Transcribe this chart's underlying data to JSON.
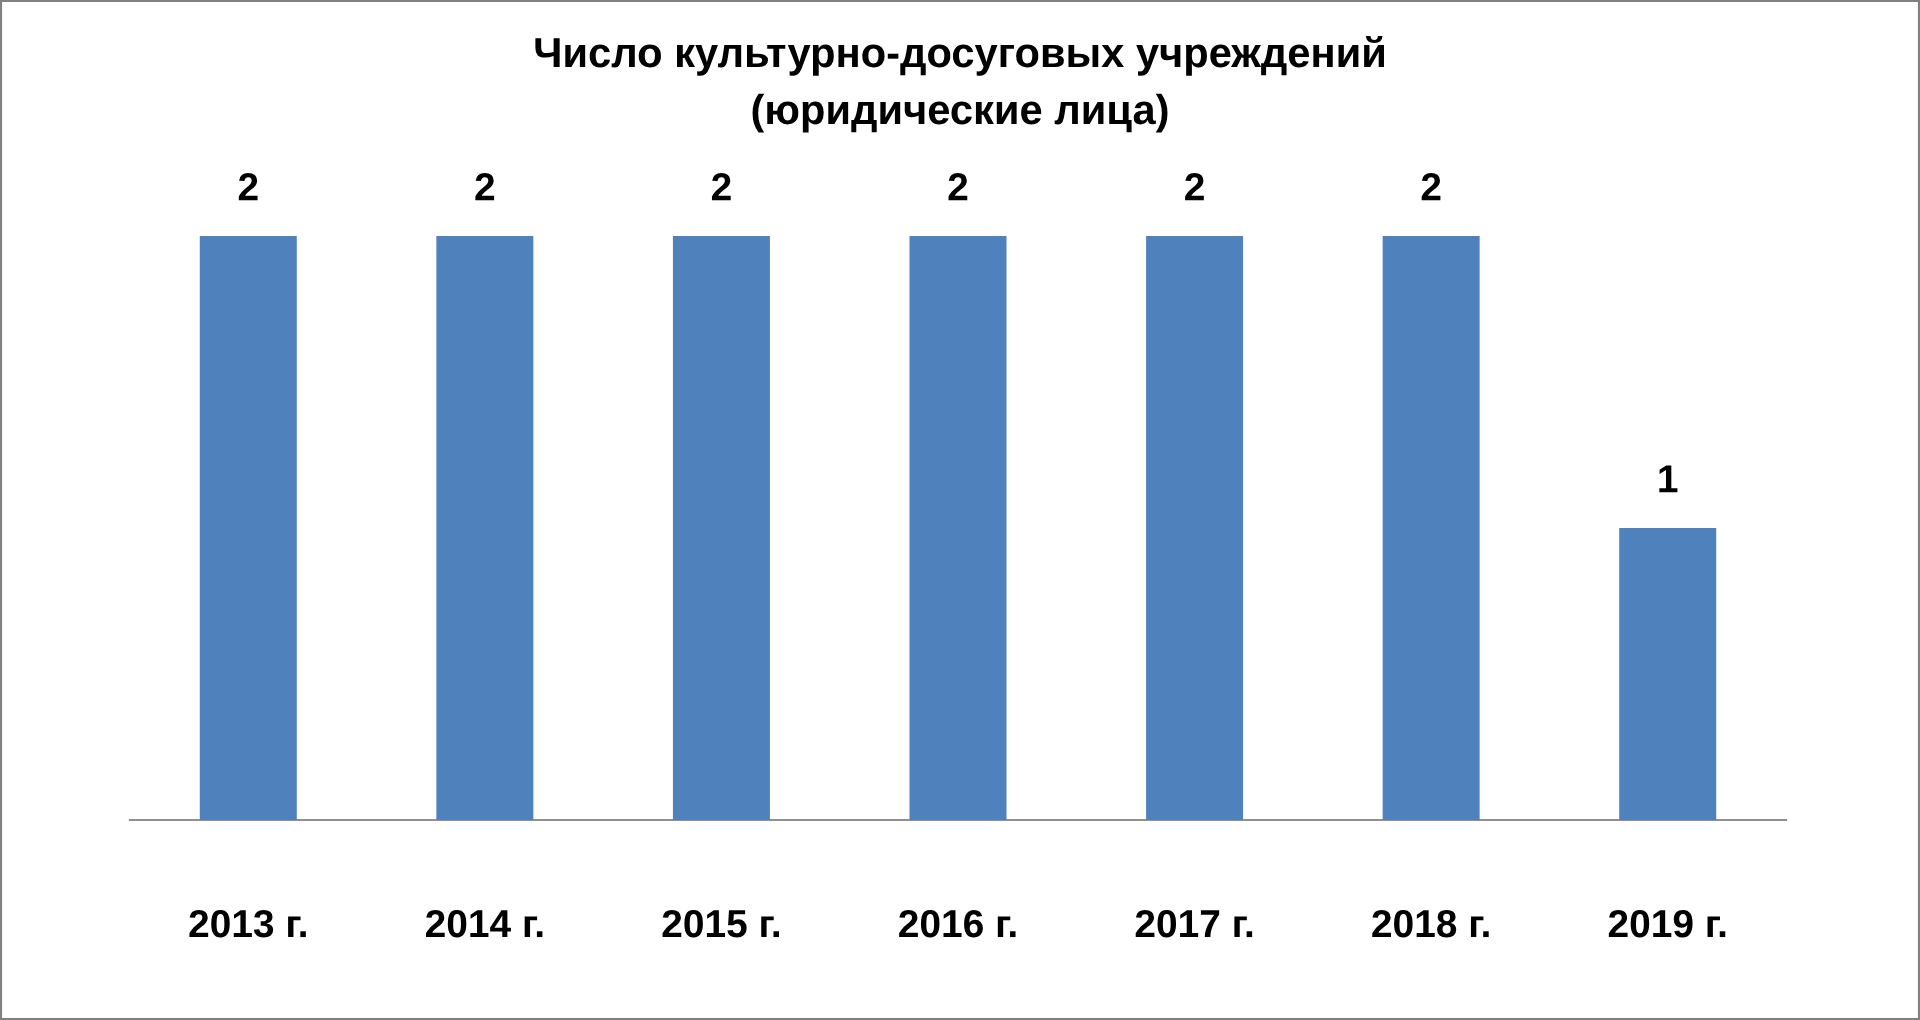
{
  "chart_data": {
    "type": "bar",
    "title": "Число культурно-досуговых учреждений\n(юридические лица)",
    "categories": [
      "2013 г.",
      "2014 г.",
      "2015 г.",
      "2016 г.",
      "2017 г.",
      "2018 г.",
      "2019 г."
    ],
    "values": [
      2,
      2,
      2,
      2,
      2,
      2,
      1
    ],
    "color": "#4f81bd",
    "data_labels": true,
    "grid": false,
    "legend": false
  }
}
